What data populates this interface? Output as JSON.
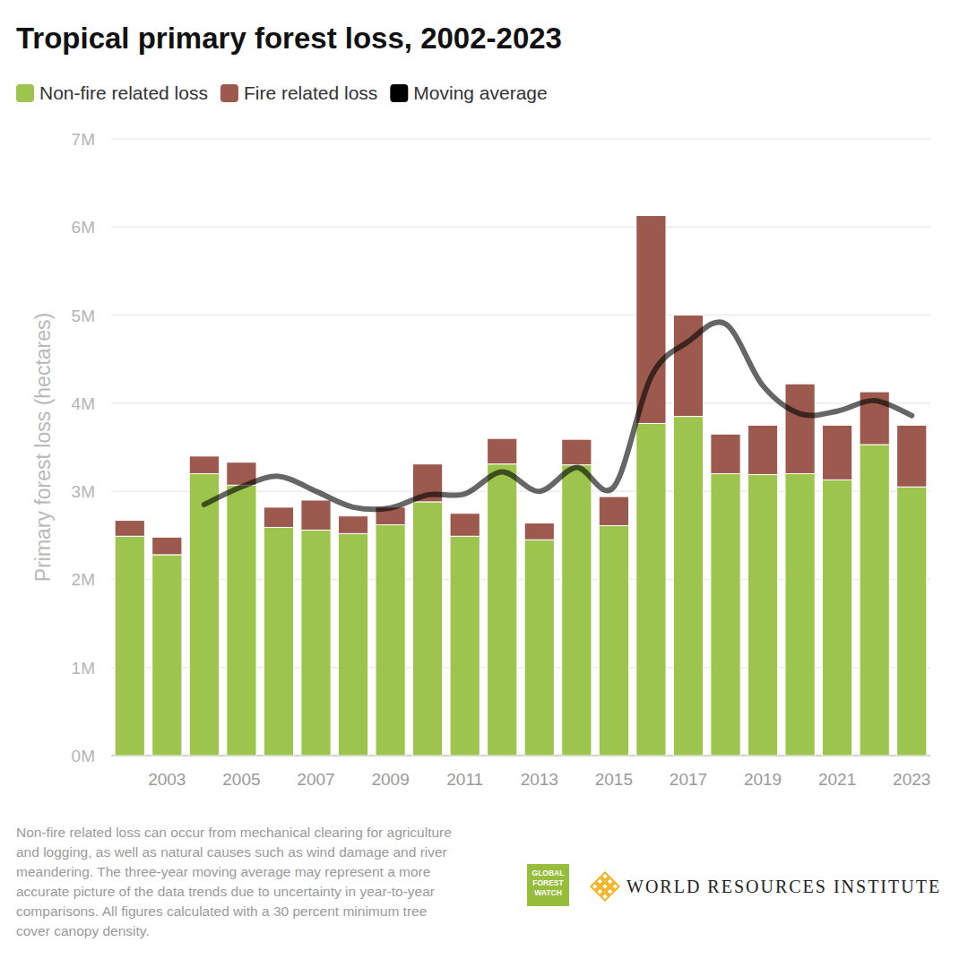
{
  "chart_data": {
    "type": "bar",
    "stacked": true,
    "title": "Tropical primary forest loss, 2002-2023",
    "y_label": "Primary forest loss (hectares)",
    "note": "Non-fire related loss can occur from mechanical clearing for agriculture and logging, as well as natural causes such as wind damage and river meandering. The three-year moving average may represent a more accurate picture of the data trends due to uncertainty in year-to-year comparisons. All figures calculated with a 30 percent minimum tree cover canopy density.",
    "logos": [
      "GLOBAL FOREST WATCH",
      "WORLD RESOURCES INSTITUTE"
    ],
    "legend": "top-left",
    "grid": true,
    "categories": [
      null,
      "2003",
      null,
      "2005",
      null,
      "2007",
      null,
      "2009",
      null,
      "2011",
      null,
      "2013",
      null,
      "2015",
      null,
      "2017",
      null,
      "2019",
      null,
      "2021",
      null,
      "2023"
    ],
    "series": [
      {
        "name": "Non-fire related loss",
        "color": "#9dc44d",
        "type": "bar",
        "values": [
          2490000,
          2280000,
          3200000,
          3070000,
          2590000,
          2560000,
          2520000,
          2620000,
          2880000,
          2490000,
          3310000,
          2450000,
          3300000,
          2610000,
          3770000,
          3850000,
          3200000,
          3190000,
          3200000,
          3130000,
          3530000,
          3050000
        ]
      },
      {
        "name": "Fire related loss",
        "color": "#9c5a4f",
        "type": "bar",
        "values": [
          180000,
          200000,
          200000,
          260000,
          230000,
          340000,
          200000,
          200000,
          430000,
          260000,
          290000,
          190000,
          290000,
          330000,
          2360000,
          1150000,
          450000,
          560000,
          1020000,
          620000,
          600000,
          700000
        ]
      },
      {
        "name": "Moving average",
        "color": "#000000",
        "type": "line",
        "values": [
          null,
          null,
          2850000,
          3050000,
          3170000,
          3000000,
          2820000,
          2810000,
          2960000,
          2970000,
          3220000,
          3000000,
          3270000,
          3050000,
          4300000,
          4700000,
          4900000,
          4200000,
          3880000,
          3910000,
          4030000,
          3860000
        ]
      }
    ],
    "ylim": [
      0,
      7000000
    ],
    "yticks": [
      {
        "value": 0,
        "label": "0M"
      },
      {
        "value": 1000000,
        "label": "1M"
      },
      {
        "value": 2000000,
        "label": "2M"
      },
      {
        "value": 3000000,
        "label": "3M"
      },
      {
        "value": 4000000,
        "label": "4M"
      },
      {
        "value": 5000000,
        "label": "5M"
      },
      {
        "value": 6000000,
        "label": "6M"
      },
      {
        "value": 7000000,
        "label": "7M"
      }
    ]
  }
}
